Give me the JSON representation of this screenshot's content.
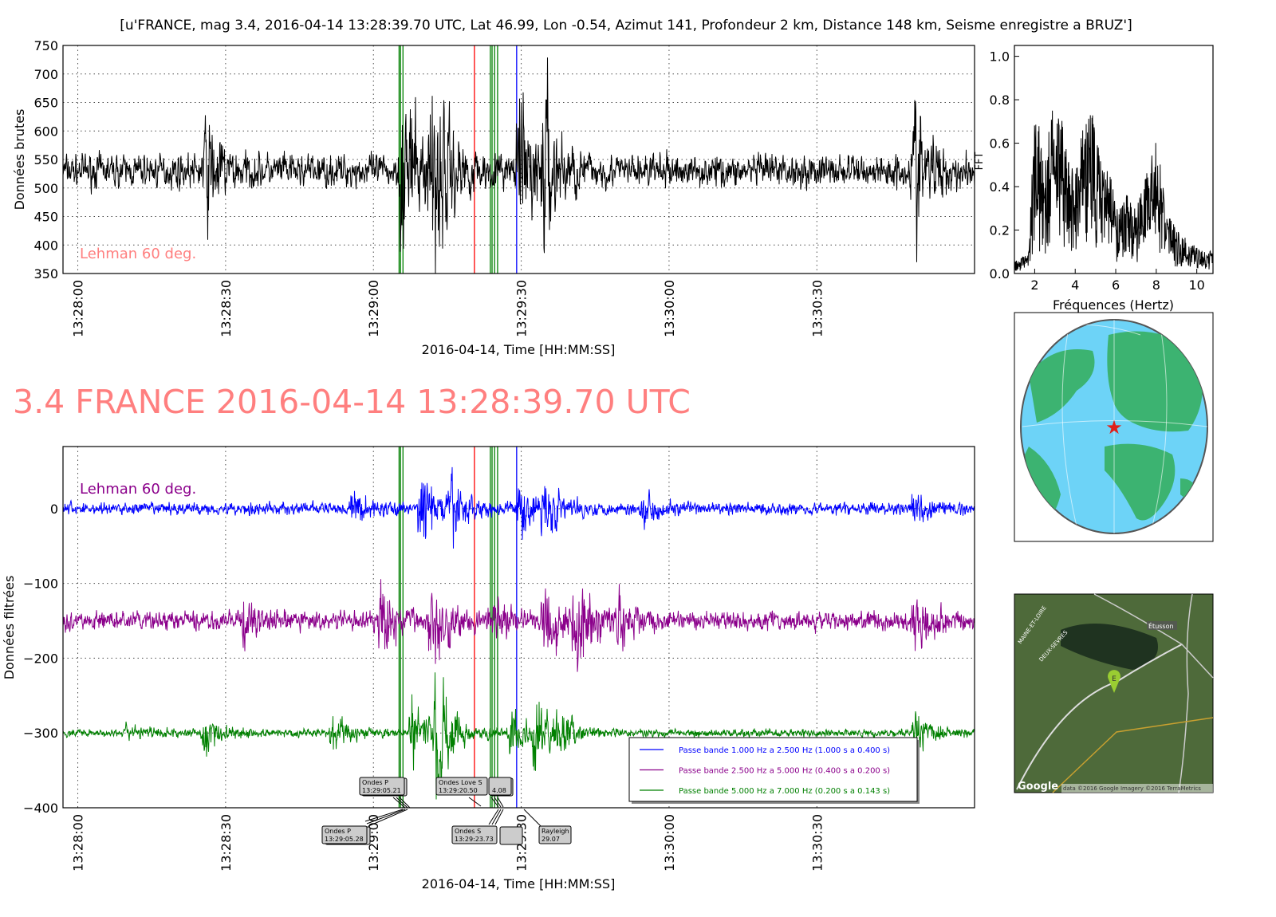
{
  "chart_data": [
    {
      "type": "line",
      "id": "raw",
      "title": "[u'FRANCE, mag 3.4, 2016-04-14 13:28:39.70 UTC, Lat 46.99, Lon -0.54, Azimut 141, Profondeur 2 km, Distance   148 km, Seisme enregistre a BRUZ']",
      "xlabel": "2016-04-14, Time [HH:MM:SS]",
      "ylabel": "Données brutes",
      "right_label": "FFT",
      "xlim_seconds_after_13_28_00": [
        -3,
        182
      ],
      "ylim": [
        350,
        750
      ],
      "yticks": [
        "350",
        "400",
        "450",
        "500",
        "550",
        "600",
        "650",
        "700",
        "750"
      ],
      "xticks": [
        "13:28:00",
        "13:28:30",
        "13:29:00",
        "13:29:30",
        "13:30:00",
        "13:30:30"
      ],
      "annotation": "Lehman 60 deg.",
      "series": {
        "name": "raw",
        "color": "#000000",
        "mean": 530,
        "base_amp": 28,
        "bursts": [
          [
            26,
            80
          ],
          [
            66,
            140
          ],
          [
            72,
            200
          ],
          [
            90,
            120
          ],
          [
            95,
            110
          ],
          [
            170,
            120
          ]
        ]
      },
      "grid": true
    },
    {
      "type": "line",
      "id": "fft",
      "xlabel": "Fréquences (Hertz)",
      "xlim": [
        1,
        10.8
      ],
      "ylim": [
        0,
        1.05
      ],
      "xticks": [
        "2",
        "4",
        "6",
        "8",
        "10"
      ],
      "yticks": [
        "0.0",
        "0.2",
        "0.4",
        "0.6",
        "0.8",
        "1.0"
      ],
      "envelope": [
        [
          1,
          0.06
        ],
        [
          1.7,
          0.1
        ],
        [
          1.9,
          0.55
        ],
        [
          2,
          0.84
        ],
        [
          2.5,
          0.5
        ],
        [
          2.8,
          0.75
        ],
        [
          3.2,
          0.84
        ],
        [
          3.5,
          0.6
        ],
        [
          4,
          0.45
        ],
        [
          4.3,
          0.65
        ],
        [
          4.8,
          0.79
        ],
        [
          5.3,
          0.5
        ],
        [
          5.8,
          0.45
        ],
        [
          6,
          0.3
        ],
        [
          6.5,
          0.37
        ],
        [
          7,
          0.3
        ],
        [
          7.5,
          0.45
        ],
        [
          8,
          0.65
        ],
        [
          8.5,
          0.3
        ],
        [
          9,
          0.2
        ],
        [
          10,
          0.12
        ],
        [
          10.8,
          0.1
        ]
      ]
    },
    {
      "type": "line",
      "id": "filtered",
      "title": "3.4 FRANCE 2016-04-14 13:28:39.70 UTC",
      "xlabel": "2016-04-14, Time [HH:MM:SS]",
      "ylabel": "Données filtrées",
      "xlim_seconds_after_13_28_00": [
        -3,
        182
      ],
      "ylim": [
        -400,
        83
      ],
      "yticks": [
        "0",
        "−100",
        "−200",
        "−300",
        "−400"
      ],
      "ytick_values": [
        0,
        -100,
        -200,
        -300,
        -400
      ],
      "xticks": [
        "13:28:00",
        "13:28:30",
        "13:29:00",
        "13:29:30",
        "13:30:00",
        "13:30:30"
      ],
      "annotation": "Lehman 60 deg.",
      "series": [
        {
          "name": "Passe bande 1.000 Hz a 2.500 Hz (1.000 s a 0.400 s)",
          "color": "#0000ff",
          "offset": 0,
          "base_amp": 8,
          "bursts": [
            [
              56,
              20
            ],
            [
              70,
              45
            ],
            [
              76,
              35
            ],
            [
              90,
              35
            ],
            [
              95,
              30
            ],
            [
              115,
              15
            ],
            [
              170,
              15
            ]
          ]
        },
        {
          "name": "Passe bande 2.500 Hz a 5.000 Hz (0.400 s a 0.200 s)",
          "color": "#8b008b",
          "offset": -150,
          "base_amp": 12,
          "bursts": [
            [
              34,
              20
            ],
            [
              62,
              45
            ],
            [
              72,
              55
            ],
            [
              85,
              30
            ],
            [
              95,
              55
            ],
            [
              101,
              70
            ],
            [
              110,
              25
            ],
            [
              170,
              30
            ]
          ]
        },
        {
          "name": "Passe bande 5.000 Hz a 7.000 Hz (0.200 s a 0.143 s)",
          "color": "#008000",
          "offset": -300,
          "base_amp": 5,
          "bursts": [
            [
              10,
              10
            ],
            [
              26,
              25
            ],
            [
              52,
              25
            ],
            [
              68,
              50
            ],
            [
              73,
              80
            ],
            [
              88,
              30
            ],
            [
              93,
              45
            ],
            [
              97,
              30
            ],
            [
              170,
              25
            ]
          ]
        }
      ],
      "legend_location": "lower-right",
      "grid": true
    }
  ],
  "markers": [
    {
      "t": 65.21,
      "color": "#008000"
    },
    {
      "t": 65.5,
      "color": "#008000"
    },
    {
      "t": 66.0,
      "color": "#008000"
    },
    {
      "t": 80.5,
      "color": "#ff0000"
    },
    {
      "t": 83.73,
      "color": "#008000"
    },
    {
      "t": 84.08,
      "color": "#008000"
    },
    {
      "t": 84.6,
      "color": "#008000"
    },
    {
      "t": 85.2,
      "color": "#008000"
    },
    {
      "t": 89.07,
      "color": "#0000ff"
    }
  ],
  "phase_labels": {
    "p_top": [
      "Ondes P",
      "13:29:05.21"
    ],
    "love_top": [
      "Ondes Love S",
      "13:29:20.50",
      "4.08"
    ],
    "p_bottom": [
      "Ondes P",
      "13:29:05.28"
    ],
    "s_bottom": [
      "Ondes S",
      "13:29:23.73"
    ],
    "rayleigh": [
      "Rayleigh",
      "29.07"
    ]
  },
  "map": {
    "labels": [
      "MAINE-ET-LOIRE",
      "DEUX-SEVRES",
      "Étusson"
    ],
    "marker": "E",
    "logo": "Google",
    "attribution": "data ©2016 Google  Imagery ©2016 TerraMetrics"
  },
  "colors": {
    "title_red": "#ff7f7f",
    "purple": "#8b008b"
  }
}
